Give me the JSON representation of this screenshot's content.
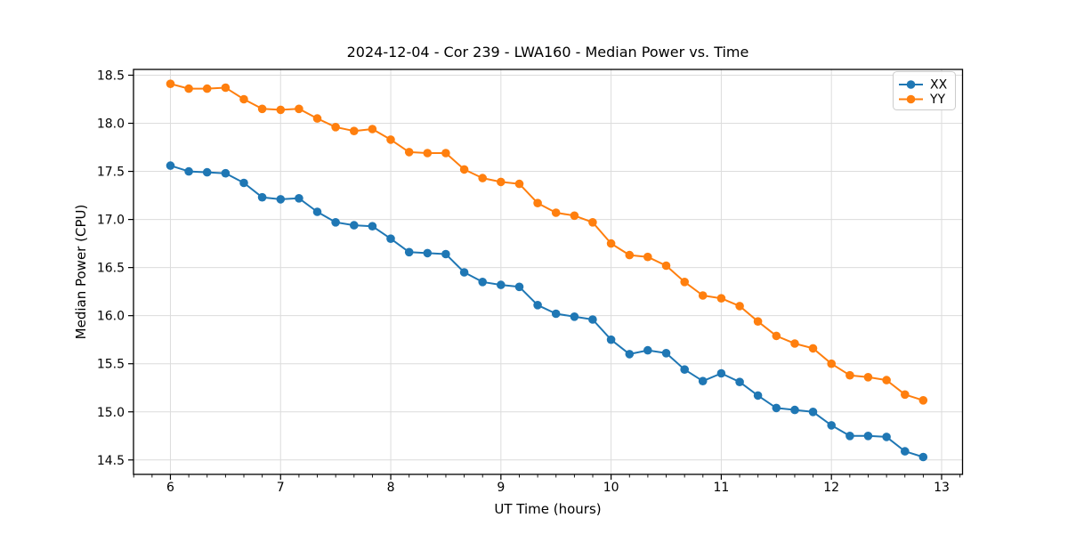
{
  "chart_data": {
    "type": "line",
    "title": "2024-12-04 - Cor 239 - LWA160 - Median Power vs. Time",
    "xlabel": "UT Time (hours)",
    "ylabel": "Median Power (CPU)",
    "xlim": [
      5.665,
      13.19
    ],
    "ylim": [
      14.35,
      18.56
    ],
    "xticks": [
      6,
      7,
      8,
      9,
      10,
      11,
      12,
      13
    ],
    "yticks": [
      "14.5",
      "15.0",
      "15.5",
      "16.0",
      "16.5",
      "17.0",
      "17.5",
      "18.0",
      "18.5"
    ],
    "x_minor_tick_step": 0.16667,
    "grid": true,
    "grid_color": "#dcdcdc",
    "legend_position": "upper right",
    "x": [
      6.0,
      6.167,
      6.333,
      6.5,
      6.667,
      6.833,
      7.0,
      7.167,
      7.333,
      7.5,
      7.667,
      7.833,
      8.0,
      8.167,
      8.333,
      8.5,
      8.667,
      8.833,
      9.0,
      9.167,
      9.333,
      9.5,
      9.667,
      9.833,
      10.0,
      10.167,
      10.333,
      10.5,
      10.667,
      10.833,
      11.0,
      11.167,
      11.333,
      11.5,
      11.667,
      11.833,
      12.0,
      12.167,
      12.333,
      12.5,
      12.667,
      12.833
    ],
    "series": [
      {
        "name": "XX",
        "color": "#1f77b4",
        "values": [
          17.56,
          17.5,
          17.49,
          17.48,
          17.38,
          17.23,
          17.21,
          17.22,
          17.08,
          16.97,
          16.94,
          16.93,
          16.8,
          16.66,
          16.65,
          16.64,
          16.45,
          16.35,
          16.32,
          16.3,
          16.11,
          16.02,
          15.99,
          15.96,
          15.75,
          15.6,
          15.64,
          15.61,
          15.44,
          15.32,
          15.4,
          15.31,
          15.17,
          15.04,
          15.02,
          15.0,
          14.86,
          14.75,
          14.75,
          14.74,
          14.59,
          14.53
        ]
      },
      {
        "name": "YY",
        "color": "#ff7f0e",
        "values": [
          18.41,
          18.36,
          18.36,
          18.37,
          18.25,
          18.15,
          18.14,
          18.15,
          18.05,
          17.96,
          17.92,
          17.94,
          17.83,
          17.7,
          17.69,
          17.69,
          17.52,
          17.43,
          17.39,
          17.37,
          17.17,
          17.07,
          17.04,
          16.97,
          16.75,
          16.63,
          16.61,
          16.52,
          16.35,
          16.21,
          16.18,
          16.1,
          15.94,
          15.79,
          15.71,
          15.66,
          15.5,
          15.38,
          15.36,
          15.33,
          15.18,
          15.12
        ]
      }
    ]
  }
}
